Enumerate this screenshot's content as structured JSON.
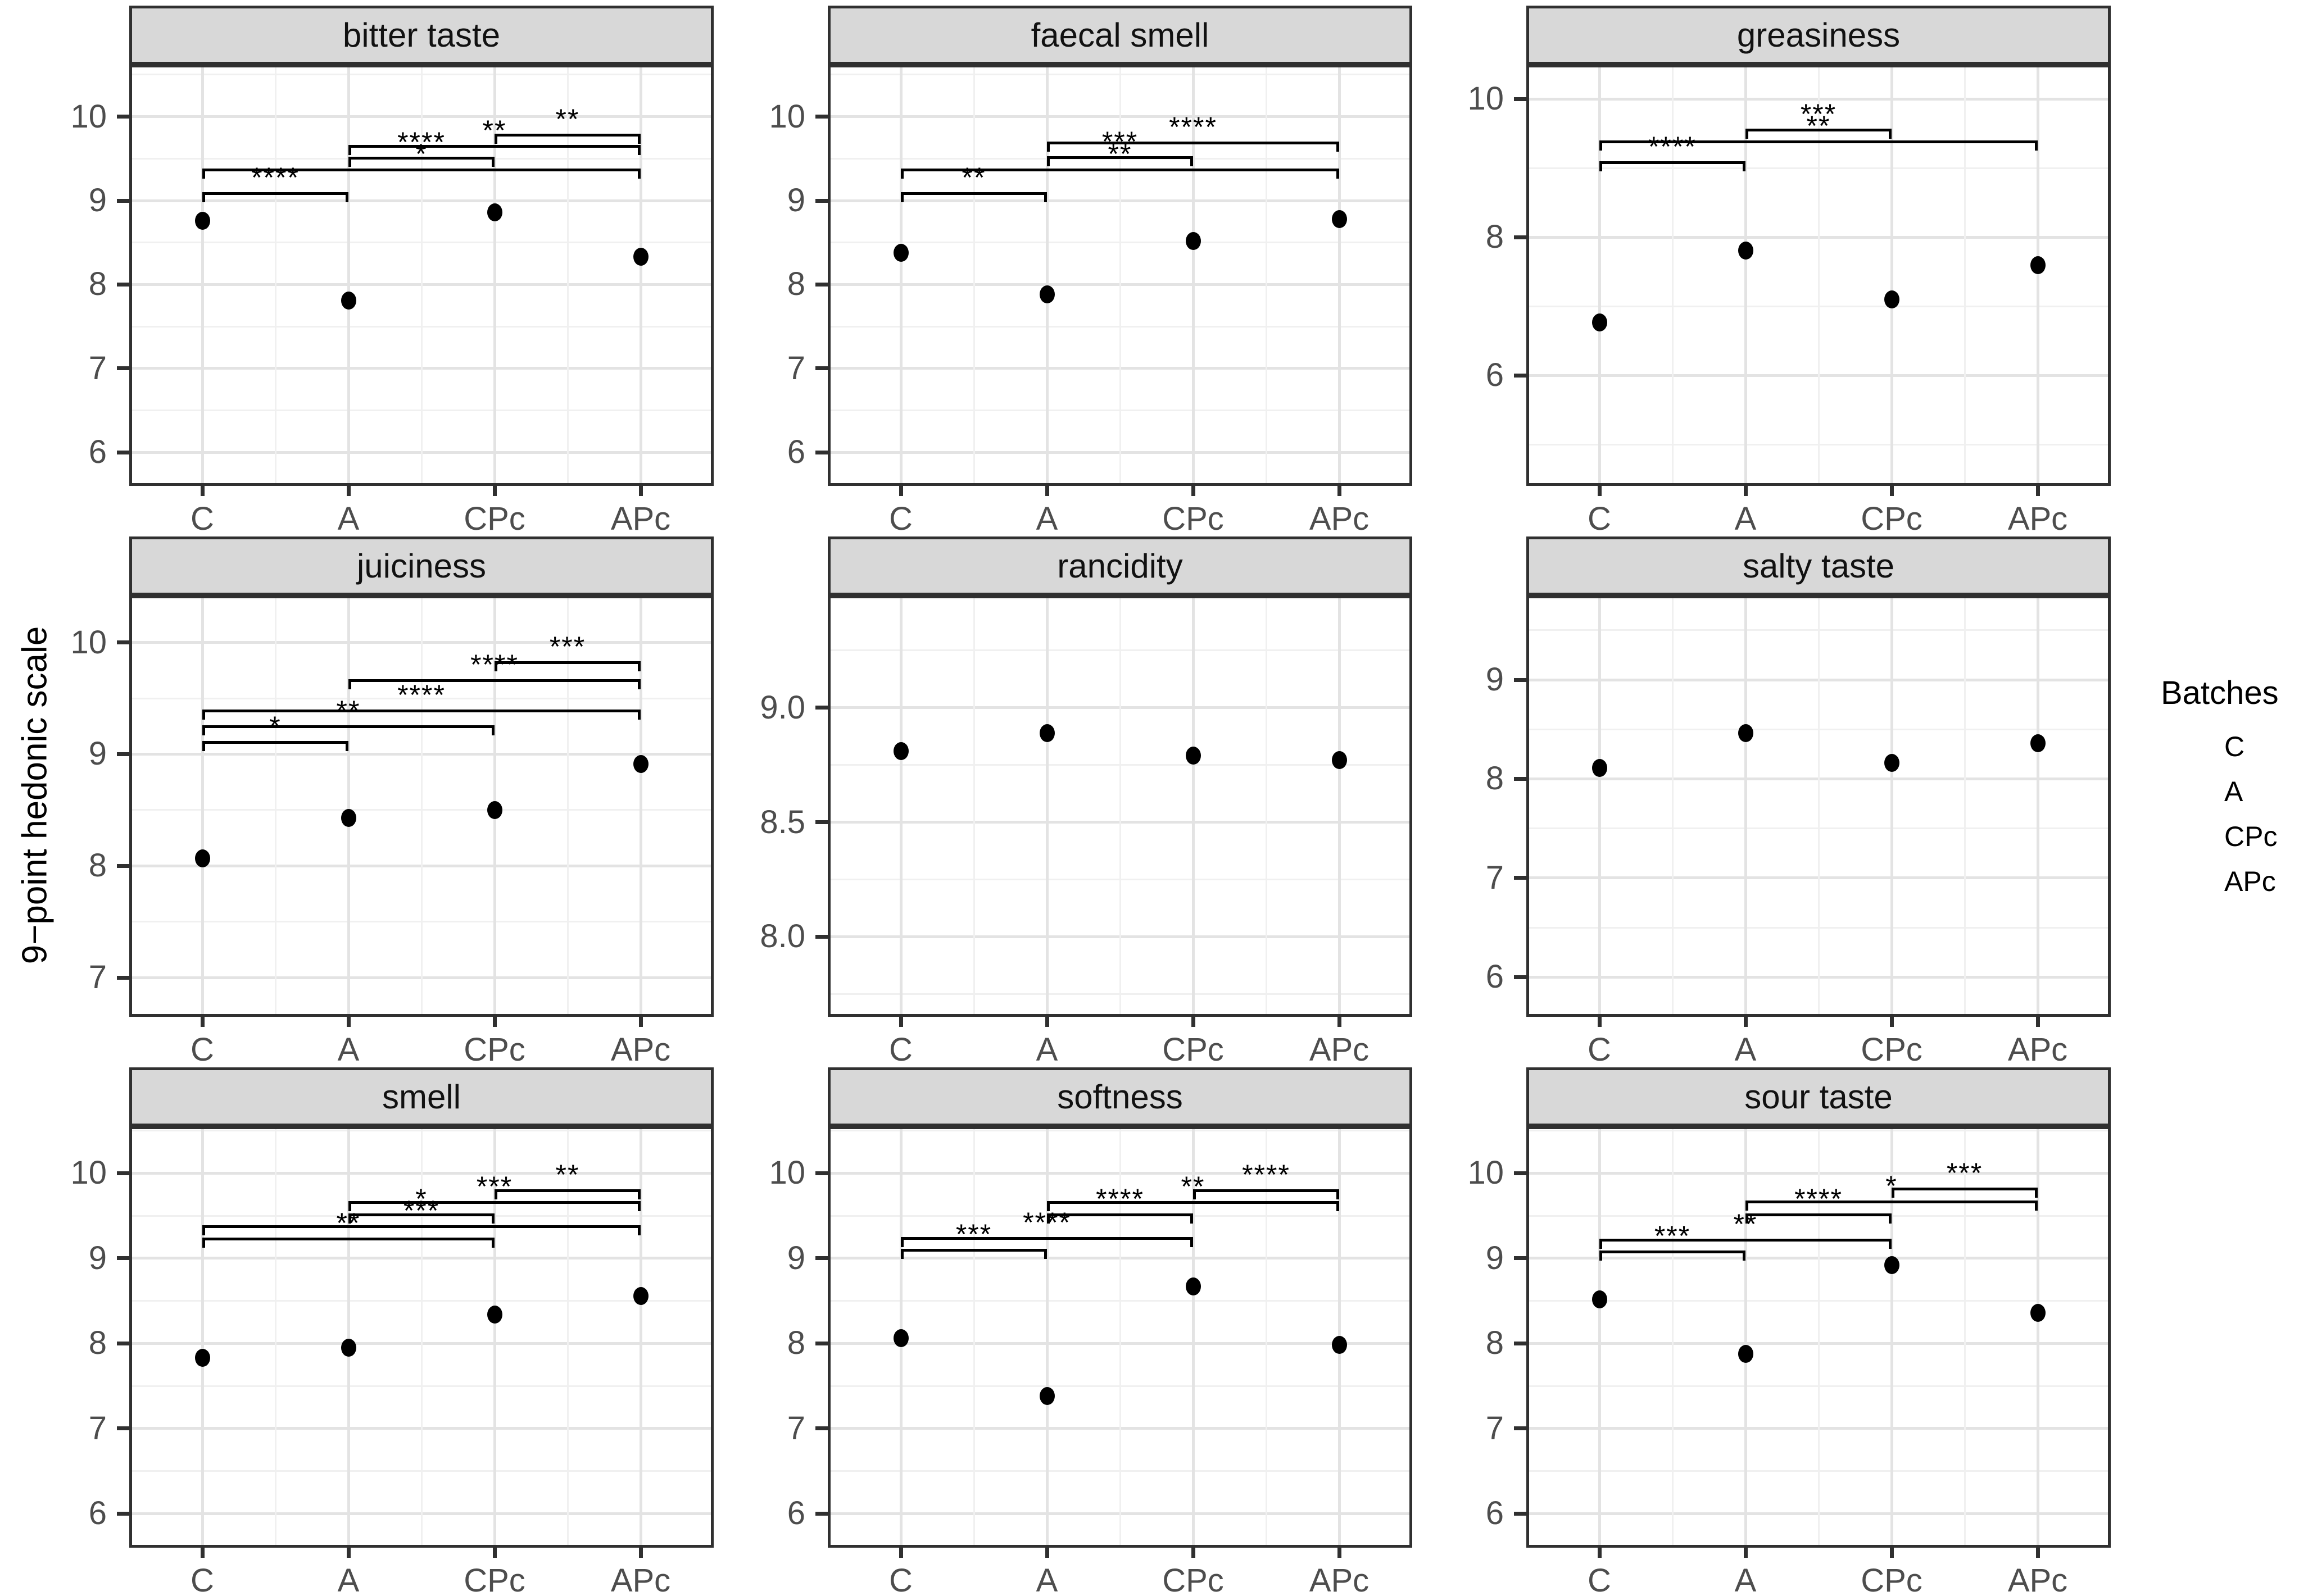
{
  "chart_data": {
    "type": "scatter",
    "layout_hint": "3x3 facet grid, free y scales, grid on, legend right",
    "ylabel": "9−point hedonic scale",
    "categories": [
      "C",
      "A",
      "CPc",
      "APc"
    ],
    "legend": {
      "title": "Batches",
      "items": [
        "C",
        "A",
        "CPc",
        "APc"
      ]
    },
    "panels": [
      {
        "title": "bitter taste",
        "ylim": [
          5.6,
          10.62
        ],
        "yticks": [
          {
            "value": 6,
            "label": "6"
          },
          {
            "value": 7,
            "label": "7"
          },
          {
            "value": 8,
            "label": "8"
          },
          {
            "value": 9,
            "label": "9"
          },
          {
            "value": 10,
            "label": "10"
          }
        ],
        "points": [
          {
            "batch": "C",
            "value": 8.76
          },
          {
            "batch": "A",
            "value": 7.81
          },
          {
            "batch": "CPc",
            "value": 8.86
          },
          {
            "batch": "APc",
            "value": 8.33
          }
        ],
        "comparisons": [
          {
            "group1": "C",
            "group2": "A",
            "y": 9.1,
            "stars": "****"
          },
          {
            "group1": "C",
            "group2": "APc",
            "y": 9.38,
            "stars": "*"
          },
          {
            "group1": "A",
            "group2": "CPc",
            "y": 9.52,
            "stars": "****"
          },
          {
            "group1": "A",
            "group2": "APc",
            "y": 9.66,
            "stars": "**"
          },
          {
            "group1": "CPc",
            "group2": "APc",
            "y": 9.8,
            "stars": "**"
          }
        ]
      },
      {
        "title": "faecal smell",
        "ylim": [
          5.6,
          10.62
        ],
        "yticks": [
          {
            "value": 6,
            "label": "6"
          },
          {
            "value": 7,
            "label": "7"
          },
          {
            "value": 8,
            "label": "8"
          },
          {
            "value": 9,
            "label": "9"
          },
          {
            "value": 10,
            "label": "10"
          }
        ],
        "points": [
          {
            "batch": "C",
            "value": 8.38
          },
          {
            "batch": "A",
            "value": 7.88
          },
          {
            "batch": "CPc",
            "value": 8.52
          },
          {
            "batch": "APc",
            "value": 8.78
          }
        ],
        "comparisons": [
          {
            "group1": "C",
            "group2": "A",
            "y": 9.1,
            "stars": "**"
          },
          {
            "group1": "C",
            "group2": "APc",
            "y": 9.38,
            "stars": "**"
          },
          {
            "group1": "A",
            "group2": "CPc",
            "y": 9.53,
            "stars": "***"
          },
          {
            "group1": "A",
            "group2": "APc",
            "y": 9.7,
            "stars": "****"
          }
        ]
      },
      {
        "title": "greasiness",
        "ylim": [
          4.4,
          10.5
        ],
        "yticks": [
          {
            "value": 6,
            "label": "6"
          },
          {
            "value": 8,
            "label": "8"
          },
          {
            "value": 10,
            "label": "10"
          }
        ],
        "points": [
          {
            "batch": "C",
            "value": 6.77
          },
          {
            "batch": "A",
            "value": 7.81
          },
          {
            "batch": "CPc",
            "value": 7.1
          },
          {
            "batch": "APc",
            "value": 7.6
          }
        ],
        "comparisons": [
          {
            "group1": "C",
            "group2": "A",
            "y": 9.1,
            "stars": "****"
          },
          {
            "group1": "C",
            "group2": "APc",
            "y": 9.4,
            "stars": "**"
          },
          {
            "group1": "A",
            "group2": "CPc",
            "y": 9.57,
            "stars": "***"
          }
        ]
      },
      {
        "title": "juiciness",
        "ylim": [
          6.65,
          10.42
        ],
        "yticks": [
          {
            "value": 7,
            "label": "7"
          },
          {
            "value": 8,
            "label": "8"
          },
          {
            "value": 9,
            "label": "9"
          },
          {
            "value": 10,
            "label": "10"
          }
        ],
        "points": [
          {
            "batch": "C",
            "value": 8.07
          },
          {
            "batch": "A",
            "value": 8.43
          },
          {
            "batch": "CPc",
            "value": 8.5
          },
          {
            "batch": "APc",
            "value": 8.91
          }
        ],
        "comparisons": [
          {
            "group1": "C",
            "group2": "A",
            "y": 9.12,
            "stars": "*"
          },
          {
            "group1": "C",
            "group2": "CPc",
            "y": 9.26,
            "stars": "**"
          },
          {
            "group1": "C",
            "group2": "APc",
            "y": 9.4,
            "stars": "****"
          },
          {
            "group1": "A",
            "group2": "APc",
            "y": 9.67,
            "stars": "****"
          },
          {
            "group1": "CPc",
            "group2": "APc",
            "y": 9.83,
            "stars": "***"
          }
        ]
      },
      {
        "title": "rancidity",
        "ylim": [
          7.65,
          9.49
        ],
        "yticks": [
          {
            "value": 8.0,
            "label": "8.0"
          },
          {
            "value": 8.5,
            "label": "8.5"
          },
          {
            "value": 9.0,
            "label": "9.0"
          }
        ],
        "points": [
          {
            "batch": "C",
            "value": 8.81
          },
          {
            "batch": "A",
            "value": 8.89
          },
          {
            "batch": "CPc",
            "value": 8.79
          },
          {
            "batch": "APc",
            "value": 8.77
          }
        ],
        "comparisons": []
      },
      {
        "title": "salty taste",
        "ylim": [
          5.6,
          9.85
        ],
        "yticks": [
          {
            "value": 6,
            "label": "6"
          },
          {
            "value": 7,
            "label": "7"
          },
          {
            "value": 8,
            "label": "8"
          },
          {
            "value": 9,
            "label": "9"
          }
        ],
        "points": [
          {
            "batch": "C",
            "value": 8.11
          },
          {
            "batch": "A",
            "value": 8.46
          },
          {
            "batch": "CPc",
            "value": 8.16
          },
          {
            "batch": "APc",
            "value": 8.36
          }
        ],
        "comparisons": []
      },
      {
        "title": "smell",
        "ylim": [
          5.6,
          10.55
        ],
        "yticks": [
          {
            "value": 6,
            "label": "6"
          },
          {
            "value": 7,
            "label": "7"
          },
          {
            "value": 8,
            "label": "8"
          },
          {
            "value": 9,
            "label": "9"
          },
          {
            "value": 10,
            "label": "10"
          }
        ],
        "points": [
          {
            "batch": "C",
            "value": 7.83
          },
          {
            "batch": "A",
            "value": 7.95
          },
          {
            "batch": "CPc",
            "value": 8.34
          },
          {
            "batch": "APc",
            "value": 8.56
          }
        ],
        "comparisons": [
          {
            "group1": "C",
            "group2": "CPc",
            "y": 9.24,
            "stars": "**"
          },
          {
            "group1": "C",
            "group2": "APc",
            "y": 9.39,
            "stars": "***"
          },
          {
            "group1": "A",
            "group2": "CPc",
            "y": 9.53,
            "stars": "*"
          },
          {
            "group1": "A",
            "group2": "APc",
            "y": 9.67,
            "stars": "***"
          },
          {
            "group1": "CPc",
            "group2": "APc",
            "y": 9.81,
            "stars": "**"
          }
        ]
      },
      {
        "title": "softness",
        "ylim": [
          5.6,
          10.55
        ],
        "yticks": [
          {
            "value": 6,
            "label": "6"
          },
          {
            "value": 7,
            "label": "7"
          },
          {
            "value": 8,
            "label": "8"
          },
          {
            "value": 9,
            "label": "9"
          },
          {
            "value": 10,
            "label": "10"
          }
        ],
        "points": [
          {
            "batch": "C",
            "value": 8.06
          },
          {
            "batch": "A",
            "value": 7.38
          },
          {
            "batch": "CPc",
            "value": 8.67
          },
          {
            "batch": "APc",
            "value": 7.98
          }
        ],
        "comparisons": [
          {
            "group1": "C",
            "group2": "A",
            "y": 9.11,
            "stars": "***"
          },
          {
            "group1": "C",
            "group2": "CPc",
            "y": 9.25,
            "stars": "****"
          },
          {
            "group1": "A",
            "group2": "CPc",
            "y": 9.53,
            "stars": "****"
          },
          {
            "group1": "A",
            "group2": "APc",
            "y": 9.67,
            "stars": "**"
          },
          {
            "group1": "CPc",
            "group2": "APc",
            "y": 9.81,
            "stars": "****"
          }
        ]
      },
      {
        "title": "sour taste",
        "ylim": [
          5.6,
          10.55
        ],
        "yticks": [
          {
            "value": 6,
            "label": "6"
          },
          {
            "value": 7,
            "label": "7"
          },
          {
            "value": 8,
            "label": "8"
          },
          {
            "value": 9,
            "label": "9"
          },
          {
            "value": 10,
            "label": "10"
          }
        ],
        "points": [
          {
            "batch": "C",
            "value": 8.52
          },
          {
            "batch": "A",
            "value": 7.88
          },
          {
            "batch": "CPc",
            "value": 8.92
          },
          {
            "batch": "APc",
            "value": 8.36
          }
        ],
        "comparisons": [
          {
            "group1": "C",
            "group2": "A",
            "y": 9.09,
            "stars": "***"
          },
          {
            "group1": "C",
            "group2": "CPc",
            "y": 9.23,
            "stars": "**"
          },
          {
            "group1": "A",
            "group2": "CPc",
            "y": 9.53,
            "stars": "****"
          },
          {
            "group1": "A",
            "group2": "APc",
            "y": 9.68,
            "stars": "*"
          },
          {
            "group1": "CPc",
            "group2": "APc",
            "y": 9.83,
            "stars": "***"
          }
        ]
      }
    ],
    "colors": {
      "point": "#000000",
      "strip_background": "#d8d8d8",
      "panel_border": "#303030",
      "grid_major": "#e3e3e3",
      "grid_minor": "#f0f0f0",
      "tick_text": "#4d4d4d"
    }
  }
}
